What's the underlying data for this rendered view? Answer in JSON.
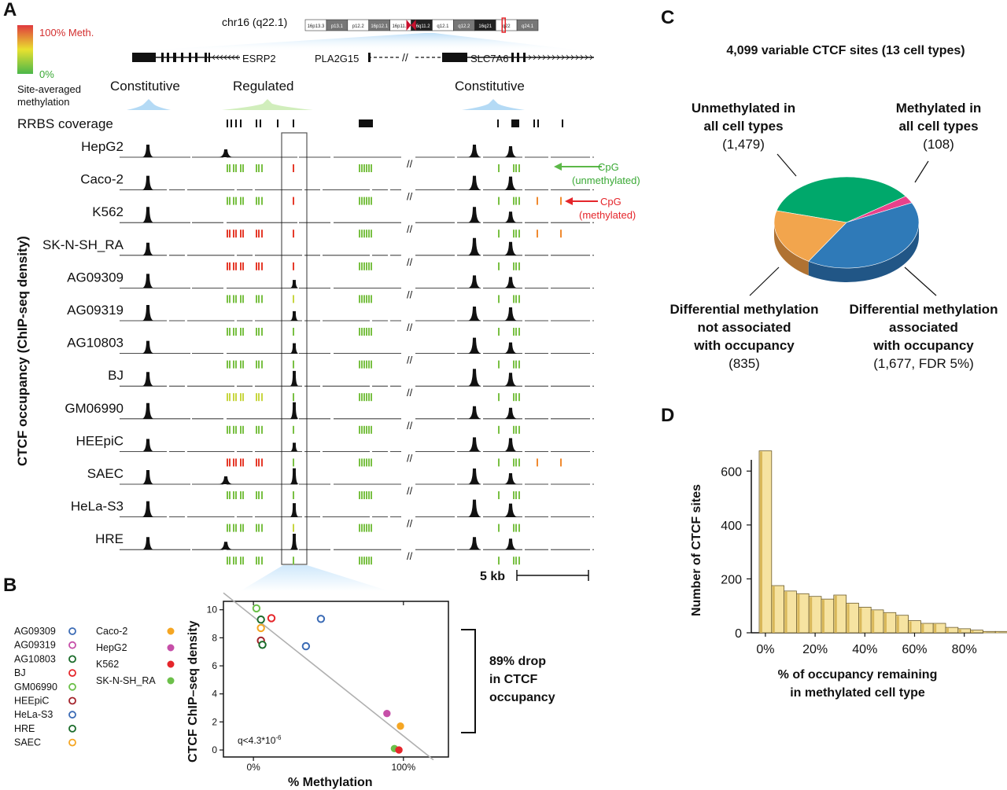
{
  "panels": {
    "a": "A",
    "b": "B",
    "c": "C",
    "d": "D"
  },
  "panel_a": {
    "chromosome_label": "chr16 (q22.1)",
    "ideogram_bands": [
      "16p13.3",
      "p13.1",
      "p12.2",
      "16p12.1",
      "16p11.2",
      "16q11.2",
      "q12.1",
      "q12.2",
      "16q21",
      "q22",
      "q24.1"
    ],
    "legend": {
      "high": "100% Meth.",
      "low": "0%",
      "caption_line1": "Site-averaged",
      "caption_line2": "methylation"
    },
    "genes": [
      "ESRP2",
      "PLA2G15",
      "SLC7A6"
    ],
    "region_labels": [
      "Constitutive",
      "Regulated",
      "Constitutive"
    ],
    "rrbs_label": "RRBS coverage",
    "y_axis_label": "CTCF occupancy (ChIP-seq density)",
    "cpg_unmeth_line1": "CpG",
    "cpg_unmeth_line2": "(unmethylated)",
    "cpg_meth_line1": "CpG",
    "cpg_meth_line2": "(methylated)",
    "scale_bar": "5 kb",
    "break_mark": "//",
    "tracks": [
      {
        "name": "HepG2",
        "reg": 0.0,
        "cpg_reg": "#e53a2a",
        "cpg_left": "#79c043"
      },
      {
        "name": "Caco-2",
        "reg": 0.0,
        "cpg_reg": "#e53a2a",
        "cpg_left": "#79c043"
      },
      {
        "name": "K562",
        "reg": 0.0,
        "cpg_reg": "#e53a2a",
        "cpg_left": "#e53a2a"
      },
      {
        "name": "SK-N-SH_RA",
        "reg": 0.0,
        "cpg_reg": "#e53a2a",
        "cpg_left": "#e53a2a"
      },
      {
        "name": "AG09309",
        "reg": 0.35,
        "cpg_reg": "#c8d640",
        "cpg_left": "#79c043"
      },
      {
        "name": "AG09319",
        "reg": 0.45,
        "cpg_reg": "#79c043",
        "cpg_left": "#79c043"
      },
      {
        "name": "AG10803",
        "reg": 0.5,
        "cpg_reg": "#79c043",
        "cpg_left": "#79c043"
      },
      {
        "name": "BJ",
        "reg": 0.85,
        "cpg_reg": "#79c043",
        "cpg_left": "#c8d640"
      },
      {
        "name": "GM06990",
        "reg": 0.95,
        "cpg_reg": "#79c043",
        "cpg_left": "#79c043"
      },
      {
        "name": "HEEpiC",
        "reg": 0.4,
        "cpg_reg": "#79c043",
        "cpg_left": "#e53a2a"
      },
      {
        "name": "SAEC",
        "reg": 0.9,
        "cpg_reg": "#79c043",
        "cpg_left": "#79c043"
      },
      {
        "name": "HeLa-S3",
        "reg": 0.75,
        "cpg_reg": "#c8d640",
        "cpg_left": "#79c043"
      },
      {
        "name": "HRE",
        "reg": 0.9,
        "cpg_reg": "#79c043",
        "cpg_left": "#79c043"
      }
    ]
  },
  "panel_b": {
    "legend_left": [
      {
        "label": "AG09309",
        "color": "#3b6bb5",
        "filled": false
      },
      {
        "label": "AG09319",
        "color": "#c64fa8",
        "filled": false
      },
      {
        "label": "AG10803",
        "color": "#1a6b2a",
        "filled": false
      },
      {
        "label": "BJ",
        "color": "#e5262b",
        "filled": false
      },
      {
        "label": "GM06990",
        "color": "#6cc04a",
        "filled": false
      },
      {
        "label": "HEEpiC",
        "color": "#a3222a",
        "filled": false
      },
      {
        "label": "HeLa-S3",
        "color": "#3b6bb5",
        "filled": false
      },
      {
        "label": "HRE",
        "color": "#1a6b2a",
        "filled": false
      },
      {
        "label": "SAEC",
        "color": "#f5a623",
        "filled": false
      }
    ],
    "legend_right": [
      {
        "label": "Caco-2",
        "color": "#f5a623",
        "filled": true
      },
      {
        "label": "HepG2",
        "color": "#c64fa8",
        "filled": true
      },
      {
        "label": "K562",
        "color": "#e5262b",
        "filled": true
      },
      {
        "label": "SK-N-SH_RA",
        "color": "#6cc04a",
        "filled": true
      }
    ],
    "annotation_line1": "89% drop",
    "annotation_line2": "in CTCF",
    "annotation_line3": "occupancy",
    "q_label": "q<4.3*10",
    "q_exp": "-6"
  },
  "panel_c": {
    "title": "4,099 variable CTCF sites (13 cell types)",
    "labels": [
      {
        "lines": [
          "Unmethylated in",
          "all cell types",
          "(1,479)"
        ]
      },
      {
        "lines": [
          "Methylated in",
          "all cell types",
          "(108)"
        ]
      },
      {
        "lines": [
          "Differential methylation",
          "not associated",
          "with occupancy",
          "(835)"
        ]
      },
      {
        "lines": [
          "Differential methylation",
          "associated",
          "with occupancy",
          "(1,677, FDR 5%)"
        ]
      }
    ]
  },
  "chart_data": [
    {
      "type": "scatter",
      "title": "",
      "xlabel": "% Methylation",
      "ylabel": "CTCF ChIP–seq density",
      "xticks": [
        "0%",
        "100%"
      ],
      "yticks": [
        "0",
        "2",
        "4",
        "6",
        "8",
        "10"
      ],
      "xlim": [
        -20,
        130
      ],
      "ylim": [
        -0.5,
        10.6
      ],
      "trend_line": {
        "x": [
          -20,
          120
        ],
        "y": [
          11.2,
          -0.7
        ]
      },
      "points": [
        {
          "x": 2,
          "y": 10.1,
          "color": "#6cc04a",
          "filled": false
        },
        {
          "x": 5,
          "y": 9.3,
          "color": "#1a6b2a",
          "filled": false
        },
        {
          "x": 12,
          "y": 9.4,
          "color": "#e5262b",
          "filled": false
        },
        {
          "x": 45,
          "y": 9.35,
          "color": "#3b6bb5",
          "filled": false
        },
        {
          "x": 5,
          "y": 8.7,
          "color": "#f5a623",
          "filled": false
        },
        {
          "x": 5,
          "y": 7.8,
          "color": "#a3222a",
          "filled": false
        },
        {
          "x": 6,
          "y": 7.5,
          "color": "#1a6b2a",
          "filled": false
        },
        {
          "x": 35,
          "y": 7.4,
          "color": "#3b6bb5",
          "filled": false
        },
        {
          "x": 89,
          "y": 2.6,
          "color": "#c64fa8",
          "filled": true
        },
        {
          "x": 98,
          "y": 1.7,
          "color": "#f5a623",
          "filled": true
        },
        {
          "x": 94,
          "y": 0.1,
          "color": "#6cc04a",
          "filled": true
        },
        {
          "x": 97,
          "y": 0.0,
          "color": "#e5262b",
          "filled": true
        }
      ]
    },
    {
      "type": "pie",
      "title": "4,099 variable CTCF sites (13 cell types)",
      "slices": [
        {
          "name": "Unmethylated in all cell types",
          "value": 1479,
          "color": "#00a86b"
        },
        {
          "name": "Methylated in all cell types",
          "value": 108,
          "color": "#e9418b"
        },
        {
          "name": "Differential methylation associated with occupancy",
          "value": 1677,
          "color": "#2f7ab8"
        },
        {
          "name": "Differential methylation not associated with occupancy",
          "value": 835,
          "color": "#f2a54d"
        }
      ]
    },
    {
      "type": "bar",
      "title": "",
      "xlabel_line1": "% of occupancy remaining",
      "xlabel_line2": "in methylated cell type",
      "ylabel": "Number of CTCF sites",
      "xticks": [
        "0%",
        "20%",
        "40%",
        "60%",
        "80%"
      ],
      "yticks": [
        "0",
        "200",
        "400",
        "600"
      ],
      "ylim": [
        0,
        700
      ],
      "bin_width_pct": 5,
      "values": [
        675,
        175,
        155,
        145,
        135,
        125,
        140,
        110,
        95,
        85,
        75,
        65,
        45,
        35,
        35,
        20,
        15,
        10,
        5,
        5,
        2
      ]
    }
  ]
}
